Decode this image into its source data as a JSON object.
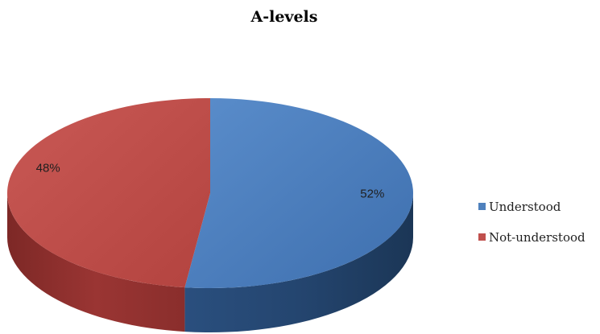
{
  "chart_data": {
    "type": "pie",
    "title": "A-levels",
    "categories": [
      "Understood",
      "Not-understood"
    ],
    "values": [
      52,
      48
    ],
    "data_labels": [
      "52%",
      "48%"
    ],
    "legend_placement": "right",
    "colors": {
      "Understood": "#4f81bd",
      "Not-understood": "#c0504d"
    },
    "style": "3d"
  }
}
